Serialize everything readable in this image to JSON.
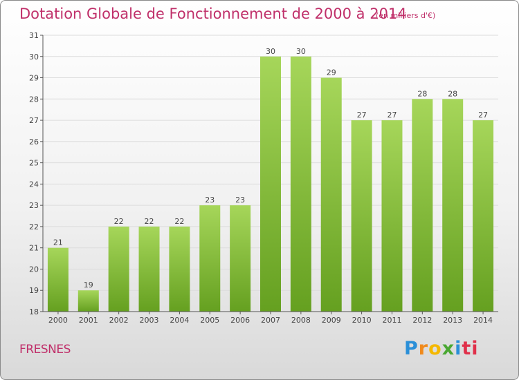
{
  "chart_data": {
    "type": "bar",
    "title": "Dotation Globale de Fonctionnement de 2000 à 2014",
    "subtitle": "(en milliers d'€)",
    "categories": [
      "2000",
      "2001",
      "2002",
      "2003",
      "2004",
      "2005",
      "2006",
      "2007",
      "2008",
      "2009",
      "2010",
      "2011",
      "2012",
      "2013",
      "2014"
    ],
    "values": [
      21,
      19,
      22,
      22,
      22,
      23,
      23,
      30,
      30,
      29,
      27,
      27,
      28,
      28,
      27
    ],
    "ylim": [
      18,
      31
    ],
    "yticks": [
      "18",
      "19",
      "20",
      "21",
      "22",
      "23",
      "24",
      "25",
      "26",
      "27",
      "28",
      "29",
      "30",
      "31"
    ],
    "grid": true,
    "bar_color": "#7ab32e",
    "bar_color_light": "#a6d65a"
  },
  "footer": {
    "commune": "FRESNES",
    "logo": "Proxiti",
    "logo_colors": [
      "#2a8fd8",
      "#f08a1c",
      "#f5b800",
      "#4aa832",
      "#2a8fd8",
      "#e0304a"
    ]
  }
}
